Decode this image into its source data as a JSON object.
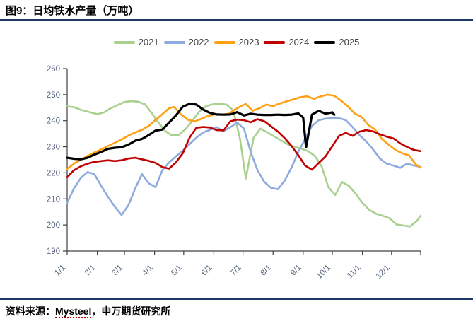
{
  "header": {
    "title": "图9：日均铁水产量（万吨）"
  },
  "footer": {
    "prefix": "资料来源：",
    "source": "Mysteel",
    "suffix": "，申万期货研究所"
  },
  "colors": {
    "rule_navy": "#1f3864",
    "axis": "#404040",
    "tick_label": "#5a6882",
    "legend_text": "#404040"
  },
  "chart_data": {
    "type": "line",
    "title": "日均铁水产量（万吨）",
    "xlabel": "",
    "ylabel": "",
    "ylim": [
      190,
      260
    ],
    "y_ticks": [
      190,
      200,
      210,
      220,
      230,
      240,
      250,
      260
    ],
    "x_tick_labels": [
      "1/1",
      "2/1",
      "3/1",
      "4/1",
      "5/1",
      "6/1",
      "7/1",
      "8/1",
      "9/1",
      "10/1",
      "11/1",
      "12/1"
    ],
    "grid": false,
    "legend_position": "top",
    "series": [
      {
        "name": "2021",
        "color": "#a9d08e",
        "points": [
          [
            "1/1",
            245.5
          ],
          [
            "1/8",
            245.2
          ],
          [
            "1/15",
            244.2
          ],
          [
            "1/22",
            243.5
          ],
          [
            "2/1",
            242.5
          ],
          [
            "2/8",
            243.2
          ],
          [
            "2/15",
            244.8
          ],
          [
            "2/22",
            246.0
          ],
          [
            "3/1",
            247.2
          ],
          [
            "3/8",
            247.5
          ],
          [
            "3/15",
            247.3
          ],
          [
            "3/22",
            246.3
          ],
          [
            "3/29",
            243.0
          ],
          [
            "4/5",
            239.3
          ],
          [
            "4/12",
            236.0
          ],
          [
            "4/19",
            234.3
          ],
          [
            "4/26",
            234.6
          ],
          [
            "5/3",
            236.8
          ],
          [
            "5/10",
            240.0
          ],
          [
            "5/17",
            243.5
          ],
          [
            "5/24",
            245.6
          ],
          [
            "5/31",
            246.3
          ],
          [
            "6/7",
            246.5
          ],
          [
            "6/14",
            246.2
          ],
          [
            "6/21",
            244.0
          ],
          [
            "6/28",
            233.0
          ],
          [
            "7/4",
            217.8
          ],
          [
            "7/12",
            233.5
          ],
          [
            "7/19",
            237.0
          ],
          [
            "7/26",
            235.5
          ],
          [
            "8/2",
            234.0
          ],
          [
            "8/9",
            232.5
          ],
          [
            "8/16",
            231.0
          ],
          [
            "8/23",
            230.0
          ],
          [
            "8/30",
            229.3
          ],
          [
            "9/6",
            228.3
          ],
          [
            "9/13",
            226.5
          ],
          [
            "9/20",
            222.5
          ],
          [
            "9/27",
            214.5
          ],
          [
            "10/4",
            211.5
          ],
          [
            "10/11",
            216.5
          ],
          [
            "10/18",
            215.0
          ],
          [
            "10/25",
            212.0
          ],
          [
            "11/1",
            208.5
          ],
          [
            "11/8",
            205.8
          ],
          [
            "11/15",
            204.3
          ],
          [
            "11/22",
            203.5
          ],
          [
            "11/29",
            202.6
          ],
          [
            "12/6",
            200.2
          ],
          [
            "12/13",
            199.8
          ],
          [
            "12/20",
            199.4
          ],
          [
            "12/27",
            201.5
          ],
          [
            "12/31",
            203.5
          ]
        ]
      },
      {
        "name": "2022",
        "color": "#8faadc",
        "points": [
          [
            "1/1",
            208.5
          ],
          [
            "1/8",
            214.0
          ],
          [
            "1/15",
            218.0
          ],
          [
            "1/22",
            220.3
          ],
          [
            "1/29",
            219.5
          ],
          [
            "2/5",
            215.0
          ],
          [
            "2/12",
            210.8
          ],
          [
            "2/19",
            207.0
          ],
          [
            "2/26",
            203.8
          ],
          [
            "3/5",
            207.5
          ],
          [
            "3/12",
            214.0
          ],
          [
            "3/19",
            219.5
          ],
          [
            "3/26",
            216.0
          ],
          [
            "4/2",
            214.5
          ],
          [
            "4/9",
            221.0
          ],
          [
            "4/16",
            224.0
          ],
          [
            "4/23",
            226.3
          ],
          [
            "4/30",
            228.5
          ],
          [
            "5/7",
            231.0
          ],
          [
            "5/14",
            233.5
          ],
          [
            "5/21",
            235.5
          ],
          [
            "5/28",
            236.5
          ],
          [
            "6/4",
            237.5
          ],
          [
            "6/11",
            236.0
          ],
          [
            "6/18",
            237.5
          ],
          [
            "6/25",
            239.3
          ],
          [
            "7/2",
            237.0
          ],
          [
            "7/9",
            228.0
          ],
          [
            "7/16",
            221.0
          ],
          [
            "7/23",
            216.5
          ],
          [
            "7/30",
            214.2
          ],
          [
            "8/6",
            213.7
          ],
          [
            "8/13",
            217.0
          ],
          [
            "8/20",
            222.0
          ],
          [
            "8/27",
            228.0
          ],
          [
            "9/3",
            233.0
          ],
          [
            "9/10",
            238.0
          ],
          [
            "9/17",
            240.2
          ],
          [
            "9/24",
            240.8
          ],
          [
            "10/1",
            241.0
          ],
          [
            "10/8",
            241.0
          ],
          [
            "10/15",
            240.2
          ],
          [
            "10/22",
            237.5
          ],
          [
            "10/29",
            234.5
          ],
          [
            "11/5",
            232.0
          ],
          [
            "11/12",
            229.0
          ],
          [
            "11/19",
            225.5
          ],
          [
            "11/26",
            223.5
          ],
          [
            "12/3",
            222.8
          ],
          [
            "12/10",
            221.9
          ],
          [
            "12/17",
            223.6
          ],
          [
            "12/24",
            222.8
          ],
          [
            "12/31",
            222.3
          ]
        ]
      },
      {
        "name": "2023",
        "color": "#ffa012",
        "points": [
          [
            "1/1",
            221.5
          ],
          [
            "1/8",
            223.5
          ],
          [
            "1/15",
            225.0
          ],
          [
            "1/22",
            226.5
          ],
          [
            "1/29",
            227.8
          ],
          [
            "2/5",
            229.0
          ],
          [
            "2/12",
            230.3
          ],
          [
            "2/19",
            231.5
          ],
          [
            "2/26",
            232.8
          ],
          [
            "3/5",
            234.3
          ],
          [
            "3/12",
            235.5
          ],
          [
            "3/19",
            236.5
          ],
          [
            "3/26",
            238.0
          ],
          [
            "4/2",
            240.3
          ],
          [
            "4/9",
            242.5
          ],
          [
            "4/16",
            244.8
          ],
          [
            "4/21",
            245.3
          ],
          [
            "4/28",
            242.5
          ],
          [
            "5/5",
            240.4
          ],
          [
            "5/12",
            239.7
          ],
          [
            "5/19",
            240.7
          ],
          [
            "5/26",
            241.8
          ],
          [
            "6/2",
            242.4
          ],
          [
            "6/9",
            242.4
          ],
          [
            "6/16",
            242.6
          ],
          [
            "6/23",
            244.3
          ],
          [
            "6/30",
            245.8
          ],
          [
            "7/4",
            246.4
          ],
          [
            "7/11",
            243.8
          ],
          [
            "7/18",
            244.8
          ],
          [
            "7/25",
            246.2
          ],
          [
            "8/1",
            245.6
          ],
          [
            "8/8",
            246.6
          ],
          [
            "8/15",
            247.4
          ],
          [
            "8/22",
            248.2
          ],
          [
            "8/29",
            249.0
          ],
          [
            "9/5",
            249.4
          ],
          [
            "9/12",
            248.4
          ],
          [
            "9/19",
            249.3
          ],
          [
            "9/26",
            250.0
          ],
          [
            "10/3",
            249.6
          ],
          [
            "10/10",
            247.7
          ],
          [
            "10/17",
            245.5
          ],
          [
            "10/24",
            242.8
          ],
          [
            "10/31",
            241.5
          ],
          [
            "11/7",
            238.4
          ],
          [
            "11/14",
            236.6
          ],
          [
            "11/21",
            233.0
          ],
          [
            "11/28",
            230.8
          ],
          [
            "12/5",
            228.8
          ],
          [
            "12/12",
            227.5
          ],
          [
            "12/19",
            226.7
          ],
          [
            "12/26",
            223.2
          ],
          [
            "12/31",
            222.0
          ]
        ]
      },
      {
        "name": "2024",
        "color": "#c00000",
        "points": [
          [
            "1/1",
            218.3
          ],
          [
            "1/8",
            221.0
          ],
          [
            "1/15",
            222.5
          ],
          [
            "1/22",
            223.5
          ],
          [
            "1/29",
            224.2
          ],
          [
            "2/5",
            224.5
          ],
          [
            "2/12",
            224.8
          ],
          [
            "2/19",
            224.5
          ],
          [
            "2/26",
            224.8
          ],
          [
            "3/5",
            225.5
          ],
          [
            "3/12",
            225.8
          ],
          [
            "3/19",
            225.2
          ],
          [
            "3/26",
            224.6
          ],
          [
            "4/2",
            223.8
          ],
          [
            "4/9",
            222.2
          ],
          [
            "4/16",
            221.6
          ],
          [
            "4/23",
            224.0
          ],
          [
            "4/30",
            227.5
          ],
          [
            "5/7",
            233.5
          ],
          [
            "5/14",
            237.3
          ],
          [
            "5/21",
            237.6
          ],
          [
            "5/28",
            237.4
          ],
          [
            "6/4",
            236.4
          ],
          [
            "6/11",
            236.3
          ],
          [
            "6/18",
            239.8
          ],
          [
            "6/25",
            240.4
          ],
          [
            "7/2",
            240.2
          ],
          [
            "7/9",
            239.4
          ],
          [
            "7/16",
            240.6
          ],
          [
            "7/23",
            239.8
          ],
          [
            "7/30",
            237.8
          ],
          [
            "8/6",
            235.8
          ],
          [
            "8/13",
            233.3
          ],
          [
            "8/20",
            230.3
          ],
          [
            "8/27",
            226.8
          ],
          [
            "9/3",
            222.8
          ],
          [
            "9/10",
            221.2
          ],
          [
            "9/17",
            223.8
          ],
          [
            "9/24",
            226.3
          ],
          [
            "10/1",
            230.2
          ],
          [
            "10/8",
            234.2
          ],
          [
            "10/15",
            235.3
          ],
          [
            "10/22",
            234.2
          ],
          [
            "10/29",
            235.8
          ],
          [
            "11/5",
            236.4
          ],
          [
            "11/12",
            235.9
          ],
          [
            "11/19",
            234.8
          ],
          [
            "11/26",
            233.9
          ],
          [
            "12/3",
            233.2
          ],
          [
            "12/10",
            231.3
          ],
          [
            "12/17",
            229.9
          ],
          [
            "12/24",
            228.8
          ],
          [
            "12/31",
            228.3
          ]
        ]
      },
      {
        "name": "2025",
        "color": "#000000",
        "points": [
          [
            "1/1",
            225.8
          ],
          [
            "1/8",
            225.4
          ],
          [
            "1/15",
            225.2
          ],
          [
            "1/22",
            225.8
          ],
          [
            "1/29",
            227.0
          ],
          [
            "2/5",
            228.0
          ],
          [
            "2/12",
            229.2
          ],
          [
            "2/19",
            229.6
          ],
          [
            "2/26",
            229.8
          ],
          [
            "3/5",
            230.8
          ],
          [
            "3/12",
            232.3
          ],
          [
            "3/19",
            233.0
          ],
          [
            "3/26",
            234.5
          ],
          [
            "4/2",
            236.2
          ],
          [
            "4/9",
            236.6
          ],
          [
            "4/16",
            239.3
          ],
          [
            "4/23",
            242.0
          ],
          [
            "4/30",
            245.4
          ],
          [
            "5/7",
            246.5
          ],
          [
            "5/14",
            246.2
          ],
          [
            "5/21",
            244.3
          ],
          [
            "5/28",
            243.0
          ],
          [
            "6/4",
            242.4
          ],
          [
            "6/11",
            242.3
          ],
          [
            "6/18",
            242.4
          ],
          [
            "6/25",
            243.3
          ],
          [
            "7/2",
            242.0
          ],
          [
            "7/9",
            242.7
          ],
          [
            "7/16",
            242.3
          ],
          [
            "7/23",
            242.2
          ],
          [
            "7/30",
            242.2
          ],
          [
            "8/6",
            242.3
          ],
          [
            "8/13",
            242.2
          ],
          [
            "8/20",
            242.3
          ],
          [
            "8/27",
            242.8
          ],
          [
            "9/1",
            241.2
          ],
          [
            "9/4",
            229.8
          ],
          [
            "9/10",
            242.3
          ],
          [
            "9/17",
            243.8
          ],
          [
            "9/24",
            242.7
          ],
          [
            "10/1",
            243.2
          ],
          [
            "10/3",
            242.3
          ]
        ]
      }
    ]
  }
}
